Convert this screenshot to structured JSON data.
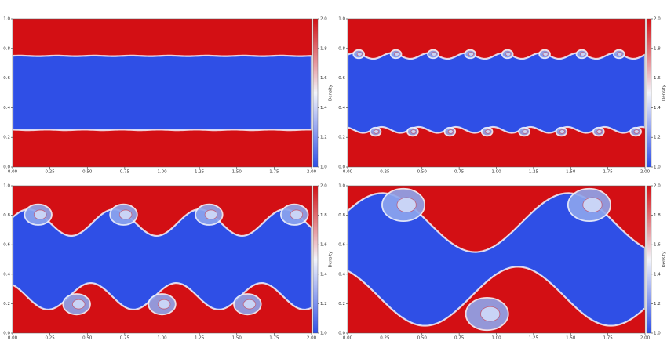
{
  "chart_data": [
    {
      "type": "heatmap",
      "colorbar_label": "Density",
      "colormap": [
        "#2f4fe6",
        "#f3f5fb",
        "#d30f14"
      ],
      "xlim": [
        0,
        2
      ],
      "ylim": [
        0,
        1
      ],
      "clim": [
        1,
        2
      ],
      "xticks": [
        {
          "value": 0,
          "label": "0.00"
        },
        0.25,
        {
          "value": 0.5,
          "label": "0.50"
        },
        0.75,
        {
          "value": 1,
          "label": "1.00"
        },
        1.25,
        {
          "value": 1.5,
          "label": "1.50"
        },
        1.75,
        {
          "value": 2,
          "label": "2.00"
        }
      ],
      "yticks": [
        {
          "value": 0,
          "label": "0.0"
        },
        0.2,
        0.4,
        0.6,
        0.8,
        {
          "value": 1,
          "label": "1.0"
        }
      ],
      "cticks": [
        {
          "value": 1,
          "label": "1.0"
        },
        1.2,
        1.4,
        1.6,
        1.8,
        {
          "value": 2,
          "label": "2.0"
        }
      ]
    },
    {
      "type": "heatmap",
      "colorbar_label": "Density",
      "colormap": [
        "#2f4fe6",
        "#f3f5fb",
        "#d30f14"
      ],
      "xlim": [
        0,
        2
      ],
      "ylim": [
        0,
        1
      ],
      "clim": [
        1,
        2
      ],
      "xticks": [
        {
          "value": 0,
          "label": "0.00"
        },
        0.25,
        {
          "value": 0.5,
          "label": "0.50"
        },
        0.75,
        {
          "value": 1,
          "label": "1.00"
        },
        1.25,
        {
          "value": 1.5,
          "label": "1.50"
        },
        1.75,
        {
          "value": 2,
          "label": "2.00"
        }
      ],
      "yticks": [
        {
          "value": 0,
          "label": "0.0"
        },
        0.2,
        0.4,
        0.6,
        0.8,
        {
          "value": 1,
          "label": "1.0"
        }
      ],
      "cticks": [
        {
          "value": 1,
          "label": "1.0"
        },
        1.2,
        1.4,
        1.6,
        1.8,
        {
          "value": 2,
          "label": "2.0"
        }
      ]
    },
    {
      "type": "heatmap",
      "colorbar_label": "Density",
      "colormap": [
        "#2f4fe6",
        "#f3f5fb",
        "#d30f14"
      ],
      "xlim": [
        0,
        2
      ],
      "ylim": [
        0,
        1
      ],
      "clim": [
        1,
        2
      ],
      "xticks": [
        {
          "value": 0,
          "label": "0.00"
        },
        0.25,
        {
          "value": 0.5,
          "label": "0.50"
        },
        0.75,
        {
          "value": 1,
          "label": "1.00"
        },
        1.25,
        {
          "value": 1.5,
          "label": "1.50"
        },
        1.75,
        {
          "value": 2,
          "label": "2.00"
        }
      ],
      "yticks": [
        {
          "value": 0,
          "label": "0.0"
        },
        0.2,
        0.4,
        0.6,
        0.8,
        {
          "value": 1,
          "label": "1.0"
        }
      ],
      "cticks": [
        {
          "value": 1,
          "label": "1.0"
        },
        1.2,
        1.4,
        1.6,
        1.8,
        {
          "value": 2,
          "label": "2.0"
        }
      ]
    },
    {
      "type": "heatmap",
      "colorbar_label": "Density",
      "colormap": [
        "#2f4fe6",
        "#f3f5fb",
        "#d30f14"
      ],
      "xlim": [
        0,
        2
      ],
      "ylim": [
        0,
        1
      ],
      "clim": [
        1,
        2
      ],
      "xticks": [
        {
          "value": 0,
          "label": "0.00"
        },
        0.25,
        {
          "value": 0.5,
          "label": "0.50"
        },
        0.75,
        {
          "value": 1,
          "label": "1.00"
        },
        1.25,
        {
          "value": 1.5,
          "label": "1.50"
        },
        1.75,
        {
          "value": 2,
          "label": "2.00"
        }
      ],
      "yticks": [
        {
          "value": 0,
          "label": "0.0"
        },
        0.2,
        0.4,
        0.6,
        0.8,
        {
          "value": 1,
          "label": "1.0"
        }
      ],
      "cticks": [
        {
          "value": 1,
          "label": "1.0"
        },
        1.2,
        1.4,
        1.6,
        1.8,
        {
          "value": 2,
          "label": "2.0"
        }
      ]
    }
  ]
}
